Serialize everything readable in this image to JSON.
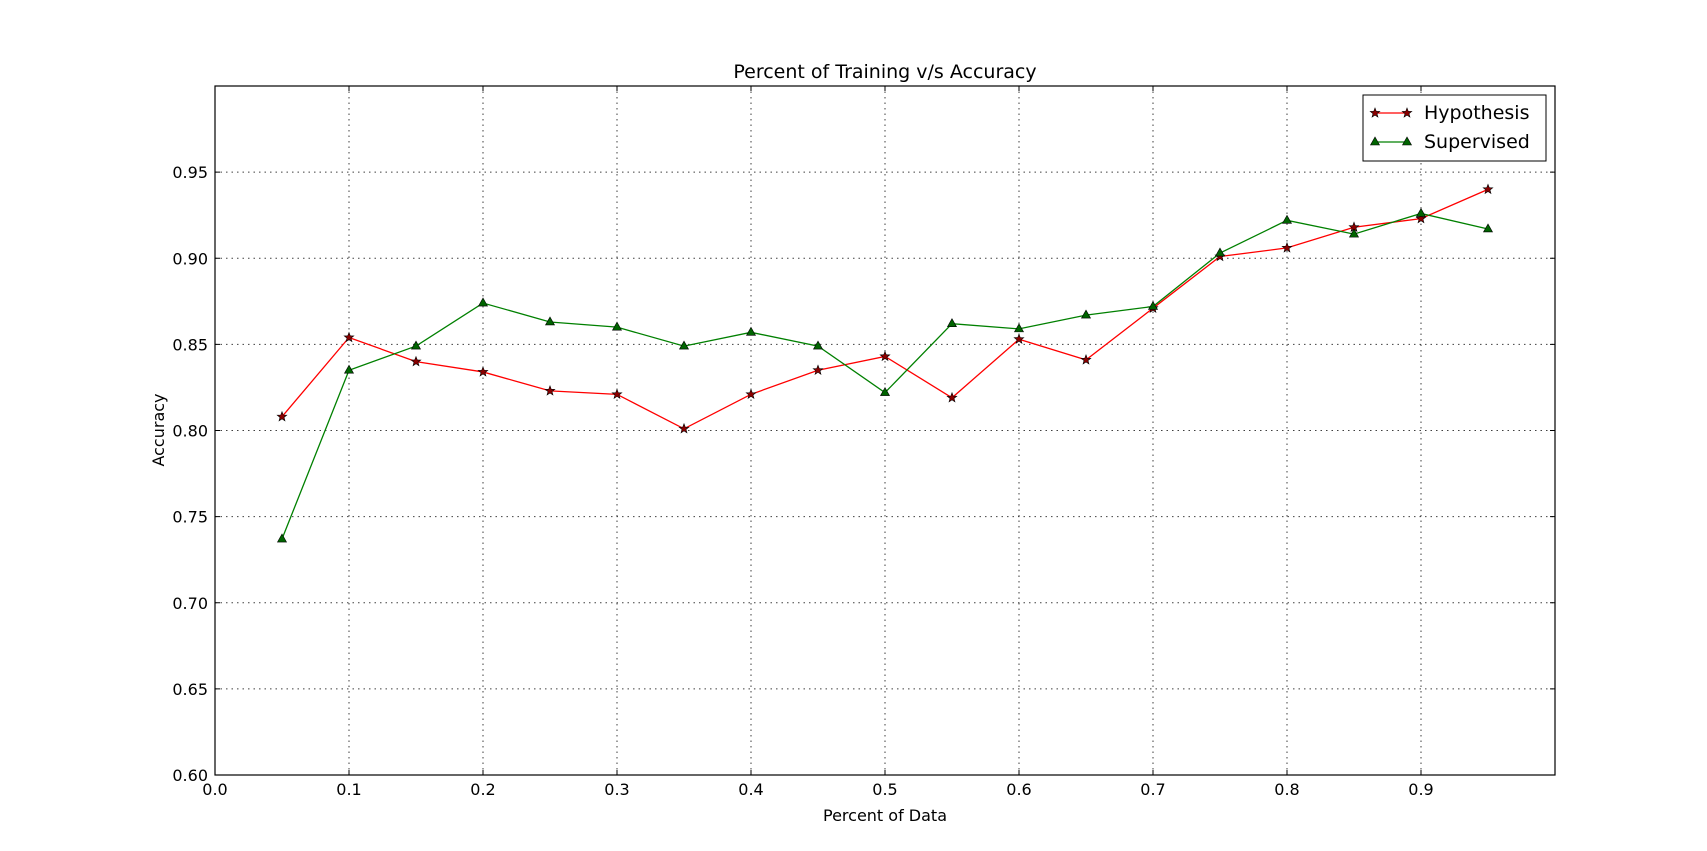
{
  "chart_data": {
    "type": "line",
    "title": "Percent of Training v/s Accuracy",
    "xlabel": "Percent of Data",
    "ylabel": "Accuracy",
    "xlim": [
      0.0,
      1.0
    ],
    "ylim": [
      0.6,
      1.0
    ],
    "x_ticks": [
      "0.0",
      "0.1",
      "0.2",
      "0.3",
      "0.4",
      "0.5",
      "0.6",
      "0.7",
      "0.8",
      "0.9"
    ],
    "y_ticks": [
      "0.60",
      "0.65",
      "0.70",
      "0.75",
      "0.80",
      "0.85",
      "0.90",
      "0.95"
    ],
    "grid": true,
    "legend_position": "top-right",
    "x": [
      0.05,
      0.1,
      0.15,
      0.2,
      0.25,
      0.3,
      0.35,
      0.4,
      0.45,
      0.5,
      0.55,
      0.6,
      0.65,
      0.7,
      0.75,
      0.8,
      0.85,
      0.9,
      0.95
    ],
    "series": [
      {
        "name": "Hypothesis",
        "color": "#ff0000",
        "marker_color": "#8b0000",
        "marker": "star",
        "values": [
          0.808,
          0.854,
          0.84,
          0.834,
          0.823,
          0.821,
          0.801,
          0.821,
          0.835,
          0.843,
          0.819,
          0.853,
          0.841,
          0.871,
          0.901,
          0.906,
          0.918,
          0.923,
          0.94
        ]
      },
      {
        "name": "Supervised",
        "color": "#008000",
        "marker_color": "#006400",
        "marker": "triangle",
        "values": [
          0.737,
          0.835,
          0.849,
          0.874,
          0.863,
          0.86,
          0.849,
          0.857,
          0.849,
          0.822,
          0.862,
          0.859,
          0.867,
          0.872,
          0.903,
          0.922,
          0.914,
          0.926,
          0.917
        ]
      }
    ]
  }
}
